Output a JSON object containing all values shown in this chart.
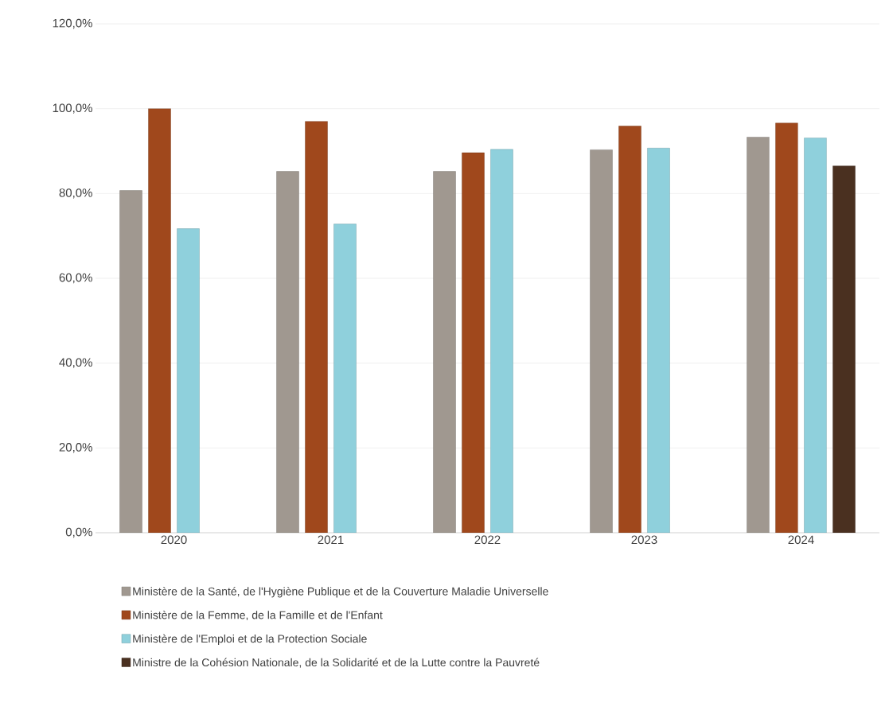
{
  "chart_data": {
    "type": "bar",
    "categories": [
      "2020",
      "2021",
      "2022",
      "2023",
      "2024"
    ],
    "series": [
      {
        "name": "Ministère de la Santé, de l'Hygiène Publique et de la Couverture Maladie Universelle",
        "color": "#a09890",
        "values": [
          80.7,
          85.2,
          85.2,
          90.3,
          93.3
        ]
      },
      {
        "name": "Ministère de la Femme, de la Famille et de l'Enfant",
        "color": "#a0481c",
        "values": [
          100,
          97.0,
          89.6,
          95.9,
          96.6
        ]
      },
      {
        "name": "Ministère de l'Emploi et de la Protection Sociale",
        "color": "#8fd0dc",
        "values": [
          71.7,
          72.8,
          90.4,
          90.7,
          93.1
        ]
      },
      {
        "name": "Ministre de la Cohésion Nationale, de la Solidarité et de la Lutte contre la Pauvreté",
        "color": "#4a3020",
        "values": [
          null,
          null,
          null,
          null,
          86.5
        ]
      }
    ],
    "ylim": [
      0,
      120
    ],
    "yticks": [
      {
        "value": 0,
        "label": "0,0%"
      },
      {
        "value": 20,
        "label": "20,0%"
      },
      {
        "value": 40,
        "label": "40,0%"
      },
      {
        "value": 60,
        "label": "60,0%"
      },
      {
        "value": 80,
        "label": "80,0%"
      },
      {
        "value": 100,
        "label": "100,0%"
      },
      {
        "value": 120,
        "label": "120,0%"
      }
    ],
    "grid": "y",
    "legend": "bottom"
  }
}
